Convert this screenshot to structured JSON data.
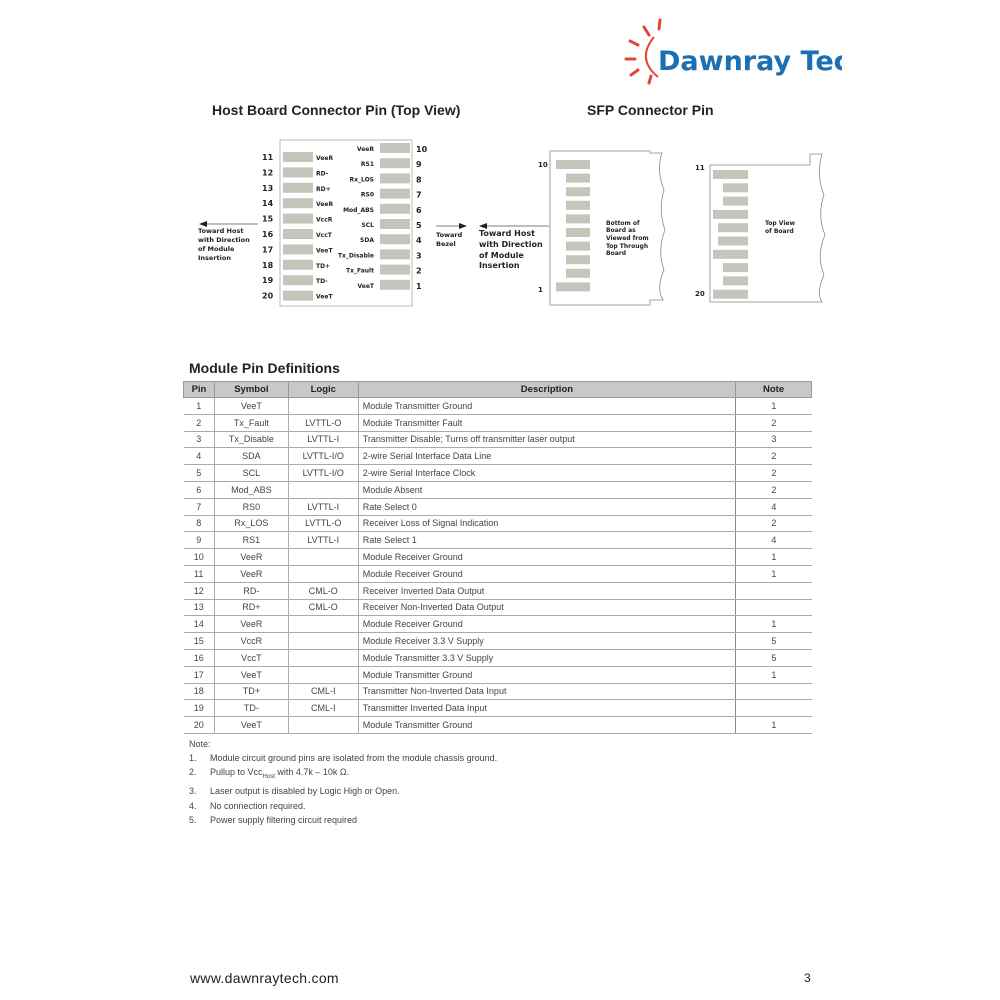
{
  "logo": {
    "text": "Dawnray Tech",
    "color": "#1a6fb5",
    "sun_color": "#e2463a"
  },
  "host_title": "Host Board Connector Pin (Top View)",
  "sfp_title": "SFP Connector Pin",
  "host_diagram": {
    "left_pins": [
      {
        "num": "11",
        "label": "VeeR"
      },
      {
        "num": "12",
        "label": "RD-"
      },
      {
        "num": "13",
        "label": "RD+"
      },
      {
        "num": "14",
        "label": "VeeR"
      },
      {
        "num": "15",
        "label": "VccR"
      },
      {
        "num": "16",
        "label": "VccT"
      },
      {
        "num": "17",
        "label": "VeeT"
      },
      {
        "num": "18",
        "label": "TD+"
      },
      {
        "num": "19",
        "label": "TD-"
      },
      {
        "num": "20",
        "label": "VeeT"
      }
    ],
    "right_pins": [
      {
        "num": "10",
        "label": "VeeR"
      },
      {
        "num": "9",
        "label": "RS1"
      },
      {
        "num": "8",
        "label": "Rx_LOS"
      },
      {
        "num": "7",
        "label": "RS0"
      },
      {
        "num": "6",
        "label": "Mod_ABS"
      },
      {
        "num": "5",
        "label": "SCL"
      },
      {
        "num": "4",
        "label": "SDA"
      },
      {
        "num": "3",
        "label": "Tx_Disable"
      },
      {
        "num": "2",
        "label": "Tx_Fault"
      },
      {
        "num": "1",
        "label": "VeeT"
      }
    ],
    "toward_host": [
      "Toward Host",
      "with Direction",
      "of Module",
      "Insertion"
    ],
    "toward_bezel": [
      "Toward",
      "Bezel"
    ]
  },
  "sfp_diagram": {
    "toward_host": [
      "Toward Host",
      "with Direction",
      "of Module",
      "Insertion"
    ],
    "bottom_label": [
      "Bottom of",
      "Board as",
      "Viewed from",
      "Top Through",
      "Board"
    ],
    "bottom_top_num": "10",
    "bottom_bottom_num": "1",
    "top_label": [
      "Top View",
      "of Board"
    ],
    "top_top_num": "11",
    "top_bottom_num": "20"
  },
  "table": {
    "title": "Module Pin Definitions",
    "headers": [
      "Pin",
      "Symbol",
      "Logic",
      "Description",
      "Note"
    ],
    "rows": [
      [
        "1",
        "VeeT",
        "",
        "Module Transmitter Ground",
        "1"
      ],
      [
        "2",
        "Tx_Fault",
        "LVTTL-O",
        "Module Transmitter Fault",
        "2"
      ],
      [
        "3",
        "Tx_Disable",
        "LVTTL-I",
        "Transmitter Disable; Turns off transmitter laser output",
        "3"
      ],
      [
        "4",
        "SDA",
        "LVTTL-I/O",
        "2-wire Serial Interface Data Line",
        "2"
      ],
      [
        "5",
        "SCL",
        "LVTTL-I/O",
        "2-wire Serial Interface Clock",
        "2"
      ],
      [
        "6",
        "Mod_ABS",
        "",
        "Module Absent",
        "2"
      ],
      [
        "7",
        "RS0",
        "LVTTL-I",
        "Rate Select 0",
        "4"
      ],
      [
        "8",
        "Rx_LOS",
        "LVTTL-O",
        "Receiver Loss of Signal Indication",
        "2"
      ],
      [
        "9",
        "RS1",
        "LVTTL-I",
        "Rate Select 1",
        "4"
      ],
      [
        "10",
        "VeeR",
        "",
        "Module Receiver Ground",
        "1"
      ],
      [
        "11",
        "VeeR",
        "",
        "Module Receiver Ground",
        "1"
      ],
      [
        "12",
        "RD-",
        "CML-O",
        "Receiver Inverted Data Output",
        ""
      ],
      [
        "13",
        "RD+",
        "CML-O",
        "Receiver Non-Inverted Data Output",
        ""
      ],
      [
        "14",
        "VeeR",
        "",
        "Module Receiver Ground",
        "1"
      ],
      [
        "15",
        "VccR",
        "",
        "Module Receiver 3.3 V Supply",
        "5"
      ],
      [
        "16",
        "VccT",
        "",
        "Module Transmitter 3.3 V Supply",
        "5"
      ],
      [
        "17",
        "VeeT",
        "",
        "Module Transmitter Ground",
        "1"
      ],
      [
        "18",
        "TD+",
        "CML-I",
        "Transmitter Non-Inverted Data Input",
        ""
      ],
      [
        "19",
        "TD-",
        "CML-I",
        "Transmitter Inverted Data Input",
        ""
      ],
      [
        "20",
        "VeeT",
        "",
        "Module Transmitter Ground",
        "1"
      ]
    ]
  },
  "notes": {
    "heading": "Note:",
    "items": [
      {
        "num": "1.",
        "text": "Module circuit ground pins are isolated from the module chassis ground."
      },
      {
        "num": "2.",
        "text_before": "Pullup to Vcc",
        "sub": "Host",
        "text_after": " with 4.7k – 10k Ω."
      },
      {
        "num": "3.",
        "text": "Laser output is disabled by Logic High or Open."
      },
      {
        "num": "4.",
        "text": "No connection required."
      },
      {
        "num": "5.",
        "text": "Power supply filtering circuit required"
      }
    ]
  },
  "footer": {
    "url": "www.dawnraytech.com",
    "page": "3"
  }
}
